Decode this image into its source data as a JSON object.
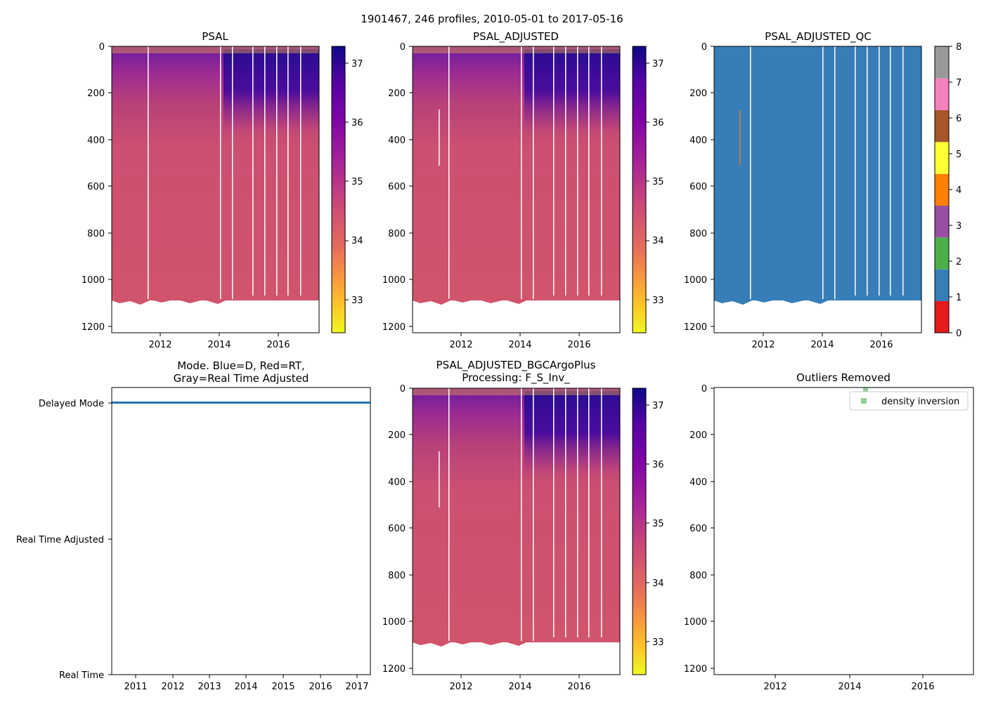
{
  "figure": {
    "suptitle": "1901467, 246 profiles, 2010-05-01 to 2017-05-16"
  },
  "chart_data": [
    {
      "type": "heatmap",
      "title": "PSAL",
      "ylim": [
        1230,
        0
      ],
      "yticks": [
        0,
        200,
        400,
        600,
        800,
        1000,
        1200
      ],
      "xlim": [
        2010.33,
        2017.38
      ],
      "xticks": [
        2012,
        2014,
        2016
      ],
      "colorbar": {
        "min": 32.5,
        "max": 37.3,
        "ticks": [
          33,
          34,
          35,
          36,
          37
        ],
        "colormap": "plasma_r"
      }
    },
    {
      "type": "heatmap",
      "title": "PSAL_ADJUSTED",
      "ylim": [
        1230,
        0
      ],
      "yticks": [
        0,
        200,
        400,
        600,
        800,
        1000,
        1200
      ],
      "xlim": [
        2010.33,
        2017.38
      ],
      "xticks": [
        2012,
        2014,
        2016
      ],
      "colorbar": {
        "min": 32.5,
        "max": 37.3,
        "ticks": [
          33,
          34,
          35,
          36,
          37
        ],
        "colormap": "plasma_r"
      }
    },
    {
      "type": "heatmap",
      "title": "PSAL_ADJUSTED_QC",
      "ylim": [
        1230,
        0
      ],
      "yticks": [
        0,
        200,
        400,
        600,
        800,
        1000,
        1200
      ],
      "xlim": [
        2010.33,
        2017.38
      ],
      "xticks": [
        2012,
        2014,
        2016
      ],
      "dominant_flag": 1,
      "colorbar": {
        "min": 0,
        "max": 8,
        "ticks": [
          0,
          1,
          2,
          3,
          4,
          5,
          6,
          7,
          8
        ],
        "colors": [
          "#e41a1c",
          "#377eb8",
          "#4daf4a",
          "#984ea3",
          "#ff7f00",
          "#ffff33",
          "#a65628",
          "#f781bf",
          "#999999"
        ]
      }
    },
    {
      "type": "scatter",
      "title_lines": [
        "Mode. Blue=D, Red=RT,",
        "Gray=Real Time Adjusted"
      ],
      "y_categories": [
        "Real Time",
        "Real Time Adjusted",
        "Delayed Mode"
      ],
      "xlim": [
        2010.33,
        2017.38
      ],
      "xticks": [
        2011,
        2012,
        2013,
        2014,
        2015,
        2016,
        2017
      ],
      "series": [
        {
          "name": "Delayed Mode",
          "y": "Delayed Mode",
          "x_range": [
            2010.33,
            2017.38
          ],
          "color": "#1f77b4"
        }
      ]
    },
    {
      "type": "heatmap",
      "title_lines": [
        "PSAL_ADJUSTED_BGCArgoPlus",
        "Processing: F_S_Inv_"
      ],
      "ylim": [
        1230,
        0
      ],
      "yticks": [
        0,
        200,
        400,
        600,
        800,
        1000,
        1200
      ],
      "xlim": [
        2010.33,
        2017.38
      ],
      "xticks": [
        2012,
        2014,
        2016
      ],
      "colorbar": {
        "min": 32.5,
        "max": 37.3,
        "ticks": [
          33,
          34,
          35,
          36,
          37
        ],
        "colormap": "plasma_r"
      }
    },
    {
      "type": "scatter",
      "title": "Outliers Removed",
      "ylim": [
        1230,
        0
      ],
      "yticks": [
        0,
        200,
        400,
        600,
        800,
        1000,
        1200
      ],
      "xlim": [
        2010.33,
        2017.38
      ],
      "xticks": [
        2012,
        2014,
        2016
      ],
      "legend": {
        "label": "density inversion",
        "color": "#2ca02c",
        "placement": "upper right"
      },
      "series": [
        {
          "name": "density inversion",
          "points": [
            {
              "x": 2014.45,
              "y": 5
            }
          ]
        }
      ]
    }
  ]
}
